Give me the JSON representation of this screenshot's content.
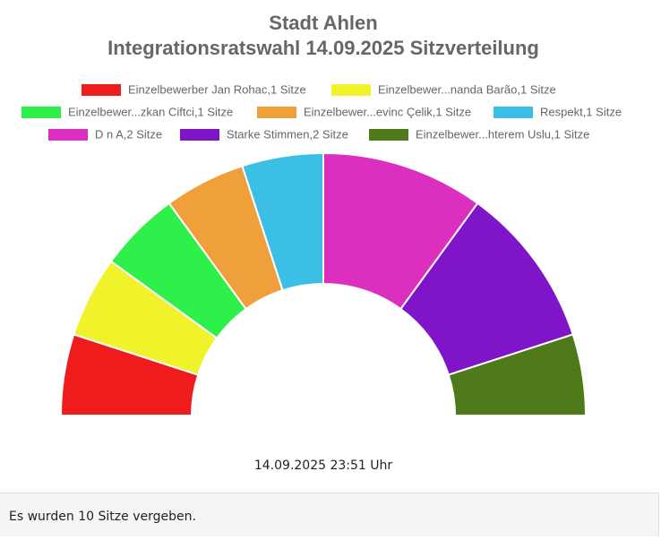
{
  "chart_data": {
    "type": "pie",
    "title": "Stadt Ahlen",
    "subtitle": "Integrationsratswahl 14.09.2025 Sitzverteilung",
    "categories": [
      "Einzelbewerber Jan Rohac,1 Sitze",
      "Einzelbewer...nanda Barão,1 Sitze",
      "Einzelbewer...zkan Ciftci,1 Sitze",
      "Einzelbewer...evinc Çelik,1 Sitze",
      "Respekt,1 Sitze",
      "D n A,2 Sitze",
      "Starke Stimmen,2 Sitze",
      "Einzelbewer...hterem Uslu,1 Sitze"
    ],
    "values": [
      1,
      1,
      1,
      1,
      1,
      2,
      2,
      1
    ],
    "colors": [
      "#ee1c1c",
      "#f0f22a",
      "#2ef04a",
      "#f0a03a",
      "#3bbfe4",
      "#dc2fc0",
      "#7f14c8",
      "#4f7a1a"
    ],
    "annotation": "14.09.2025 23:51 Uhr"
  },
  "footer": "Es wurden 10 Sitze vergeben."
}
